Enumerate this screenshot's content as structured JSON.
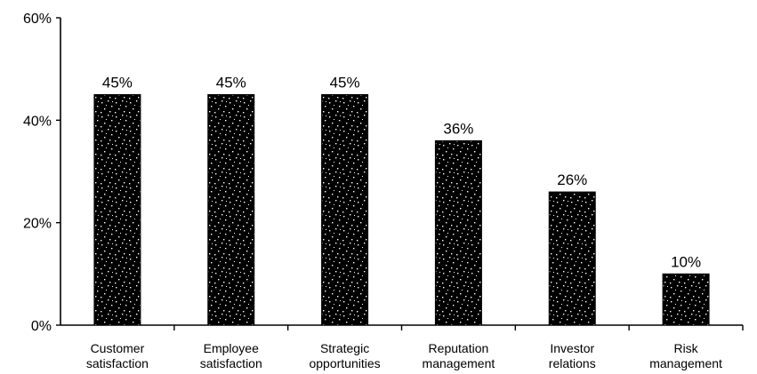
{
  "chart_data": {
    "type": "bar",
    "categories": [
      [
        "Customer",
        "satisfaction"
      ],
      [
        "Employee",
        "satisfaction"
      ],
      [
        "Strategic",
        "opportunities"
      ],
      [
        "Reputation",
        "management"
      ],
      [
        "Investor",
        "relations"
      ],
      [
        "Risk",
        "management"
      ]
    ],
    "values": [
      45,
      45,
      45,
      36,
      26,
      10
    ],
    "data_labels": [
      "45%",
      "45%",
      "45%",
      "36%",
      "26%",
      "10%"
    ],
    "ylim": [
      0,
      60
    ],
    "y_ticks": [
      0,
      20,
      40,
      60
    ],
    "y_tick_labels": [
      "0%",
      "20%",
      "40%",
      "60%"
    ],
    "title": "",
    "xlabel": "",
    "ylabel": "",
    "grid": false,
    "legend": "none",
    "colors": {
      "bar_fill": "#000000",
      "speckle": "#ffffff",
      "axis": "#000000"
    }
  }
}
